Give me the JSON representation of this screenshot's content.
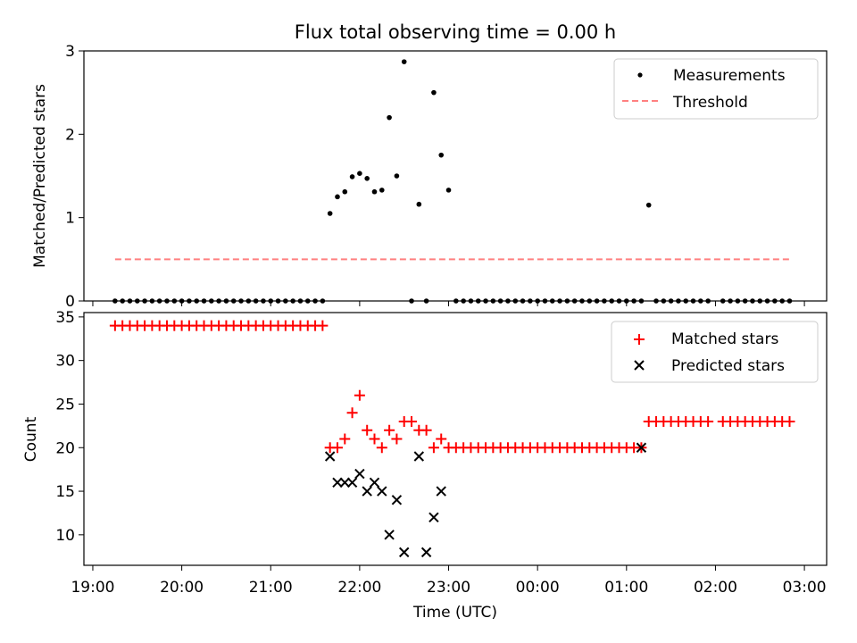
{
  "chart_data": [
    {
      "type": "scatter",
      "title": "Flux total observing time = 0.00 h",
      "xlabel": "",
      "ylabel": "Matched/Predicted stars",
      "ylim": [
        0,
        3
      ],
      "yticks": [
        "0",
        "1",
        "2",
        "3"
      ],
      "legend": "top-right",
      "series": [
        {
          "name": "Measurements",
          "marker": "dot",
          "color": "#000000",
          "x": [
            "19:15",
            "19:20",
            "19:25",
            "19:30",
            "19:35",
            "19:40",
            "19:45",
            "19:50",
            "19:55",
            "20:00",
            "20:05",
            "20:10",
            "20:15",
            "20:20",
            "20:25",
            "20:30",
            "20:35",
            "20:40",
            "20:45",
            "20:50",
            "20:55",
            "21:00",
            "21:05",
            "21:10",
            "21:15",
            "21:20",
            "21:25",
            "21:30",
            "21:35",
            "21:40",
            "21:45",
            "21:50",
            "21:55",
            "22:00",
            "22:05",
            "22:10",
            "22:15",
            "22:20",
            "22:25",
            "22:30",
            "22:35",
            "22:40",
            "22:45",
            "22:50",
            "22:55",
            "23:00",
            "23:05",
            "23:10",
            "23:15",
            "23:20",
            "23:25",
            "23:30",
            "23:35",
            "23:40",
            "23:45",
            "23:50",
            "23:55",
            "00:00",
            "00:05",
            "00:10",
            "00:15",
            "00:20",
            "00:25",
            "00:30",
            "00:35",
            "00:40",
            "00:45",
            "00:50",
            "00:55",
            "01:00",
            "01:05",
            "01:10",
            "01:15",
            "01:20",
            "01:25",
            "01:30",
            "01:35",
            "01:40",
            "01:45",
            "01:50",
            "01:55",
            "02:05",
            "02:10",
            "02:15",
            "02:20",
            "02:25",
            "02:30",
            "02:35",
            "02:40",
            "02:45",
            "02:50"
          ],
          "y": [
            0,
            0,
            0,
            0,
            0,
            0,
            0,
            0,
            0,
            0,
            0,
            0,
            0,
            0,
            0,
            0,
            0,
            0,
            0,
            0,
            0,
            0,
            0,
            0,
            0,
            0,
            0,
            0,
            0,
            1.05,
            1.25,
            1.31,
            1.49,
            1.53,
            1.47,
            1.31,
            1.33,
            2.2,
            1.5,
            2.87,
            0,
            1.16,
            0,
            2.5,
            1.75,
            1.33,
            0,
            0,
            0,
            0,
            0,
            0,
            0,
            0,
            0,
            0,
            0,
            0,
            0,
            0,
            0,
            0,
            0,
            0,
            0,
            0,
            0,
            0,
            0,
            0,
            0,
            0,
            1.15,
            0,
            0,
            0,
            0,
            0,
            0,
            0,
            0,
            0,
            0,
            0,
            0,
            0,
            0,
            0,
            0,
            0,
            0
          ]
        },
        {
          "name": "Threshold",
          "style": "dashed",
          "color": "#ff8080",
          "x": [
            "19:15",
            "02:50"
          ],
          "y": [
            0.5,
            0.5
          ]
        }
      ]
    },
    {
      "type": "scatter",
      "xlabel": "Time (UTC)",
      "ylabel": "Count",
      "ylim": [
        6.5,
        35.5
      ],
      "yticks": [
        "10",
        "15",
        "20",
        "25",
        "30",
        "35"
      ],
      "xticks": [
        "19:00",
        "20:00",
        "21:00",
        "22:00",
        "23:00",
        "00:00",
        "01:00",
        "02:00",
        "03:00"
      ],
      "legend": "top-right",
      "series": [
        {
          "name": "Matched stars",
          "marker": "plus",
          "color": "#ff0000",
          "x": [
            "19:15",
            "19:20",
            "19:25",
            "19:30",
            "19:35",
            "19:40",
            "19:45",
            "19:50",
            "19:55",
            "20:00",
            "20:05",
            "20:10",
            "20:15",
            "20:20",
            "20:25",
            "20:30",
            "20:35",
            "20:40",
            "20:45",
            "20:50",
            "20:55",
            "21:00",
            "21:05",
            "21:10",
            "21:15",
            "21:20",
            "21:25",
            "21:30",
            "21:35",
            "21:40",
            "21:45",
            "21:50",
            "21:55",
            "22:00",
            "22:05",
            "22:10",
            "22:15",
            "22:20",
            "22:25",
            "22:30",
            "22:35",
            "22:40",
            "22:45",
            "22:50",
            "22:55",
            "23:00",
            "23:05",
            "23:10",
            "23:15",
            "23:20",
            "23:25",
            "23:30",
            "23:35",
            "23:40",
            "23:45",
            "23:50",
            "23:55",
            "00:00",
            "00:05",
            "00:10",
            "00:15",
            "00:20",
            "00:25",
            "00:30",
            "00:35",
            "00:40",
            "00:45",
            "00:50",
            "00:55",
            "01:00",
            "01:05",
            "01:10",
            "01:15",
            "01:20",
            "01:25",
            "01:30",
            "01:35",
            "01:40",
            "01:45",
            "01:50",
            "01:55",
            "02:05",
            "02:10",
            "02:15",
            "02:20",
            "02:25",
            "02:30",
            "02:35",
            "02:40",
            "02:45",
            "02:50"
          ],
          "y": [
            34,
            34,
            34,
            34,
            34,
            34,
            34,
            34,
            34,
            34,
            34,
            34,
            34,
            34,
            34,
            34,
            34,
            34,
            34,
            34,
            34,
            34,
            34,
            34,
            34,
            34,
            34,
            34,
            34,
            20,
            20,
            21,
            24,
            26,
            22,
            21,
            20,
            22,
            21,
            23,
            23,
            22,
            22,
            20,
            21,
            20,
            20,
            20,
            20,
            20,
            20,
            20,
            20,
            20,
            20,
            20,
            20,
            20,
            20,
            20,
            20,
            20,
            20,
            20,
            20,
            20,
            20,
            20,
            20,
            20,
            20,
            20,
            23,
            23,
            23,
            23,
            23,
            23,
            23,
            23,
            23,
            23,
            23,
            23,
            23,
            23,
            23,
            23,
            23,
            23,
            23
          ]
        },
        {
          "name": "Predicted stars",
          "marker": "x",
          "color": "#000000",
          "x": [
            "21:40",
            "21:45",
            "21:50",
            "21:55",
            "22:00",
            "22:05",
            "22:10",
            "22:15",
            "22:20",
            "22:25",
            "22:30",
            "22:35",
            "22:40",
            "22:45",
            "22:50",
            "22:55",
            "01:10"
          ],
          "y": [
            19,
            16,
            16,
            16,
            17,
            15,
            16,
            15,
            10,
            14,
            8,
            null,
            19,
            8,
            12,
            15,
            20
          ]
        }
      ]
    }
  ]
}
